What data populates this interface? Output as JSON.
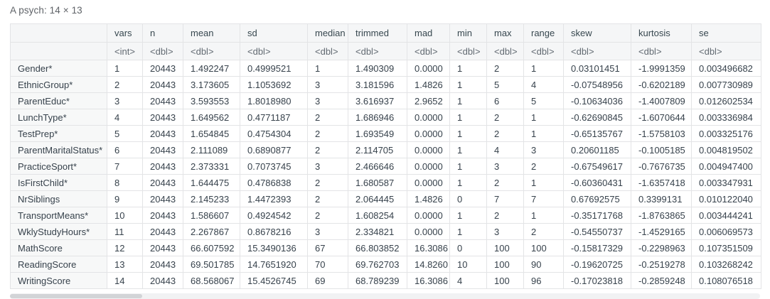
{
  "title": "A psych: 14 × 13",
  "colors": {
    "header_bg": "#f5f6f7",
    "rowname_bg": "#f7f8f8",
    "border": "#e3e4e6",
    "caption_text": "#5f6368",
    "cell_text": "#37424c"
  },
  "table": {
    "columns": [
      "",
      "vars",
      "n",
      "mean",
      "sd",
      "median",
      "trimmed",
      "mad",
      "min",
      "max",
      "range",
      "skew",
      "kurtosis",
      "se"
    ],
    "types": [
      "",
      "<int>",
      "<dbl>",
      "<dbl>",
      "<dbl>",
      "<dbl>",
      "<dbl>",
      "<dbl>",
      "<dbl>",
      "<dbl>",
      "<dbl>",
      "<dbl>",
      "<dbl>",
      "<dbl>"
    ],
    "rows": [
      [
        "Gender*",
        "1",
        "20443",
        "1.492247",
        "0.4999521",
        "1",
        "1.490309",
        "0.0000",
        "1",
        "2",
        "1",
        "0.03101451",
        "-1.9991359",
        "0.003496682"
      ],
      [
        "EthnicGroup*",
        "2",
        "20443",
        "3.173605",
        "1.1053692",
        "3",
        "3.181596",
        "1.4826",
        "1",
        "5",
        "4",
        "-0.07548956",
        "-0.6202189",
        "0.007730989"
      ],
      [
        "ParentEduc*",
        "3",
        "20443",
        "3.593553",
        "1.8018980",
        "3",
        "3.616937",
        "2.9652",
        "1",
        "6",
        "5",
        "-0.10634036",
        "-1.4007809",
        "0.012602534"
      ],
      [
        "LunchType*",
        "4",
        "20443",
        "1.649562",
        "0.4771187",
        "2",
        "1.686946",
        "0.0000",
        "1",
        "2",
        "1",
        "-0.62690845",
        "-1.6070644",
        "0.003336984"
      ],
      [
        "TestPrep*",
        "5",
        "20443",
        "1.654845",
        "0.4754304",
        "2",
        "1.693549",
        "0.0000",
        "1",
        "2",
        "1",
        "-0.65135767",
        "-1.5758103",
        "0.003325176"
      ],
      [
        "ParentMaritalStatus*",
        "6",
        "20443",
        "2.111089",
        "0.6890877",
        "2",
        "2.114705",
        "0.0000",
        "1",
        "4",
        "3",
        "0.20601185",
        "-0.1005185",
        "0.004819502"
      ],
      [
        "PracticeSport*",
        "7",
        "20443",
        "2.373331",
        "0.7073745",
        "3",
        "2.466646",
        "0.0000",
        "1",
        "3",
        "2",
        "-0.67549617",
        "-0.7676735",
        "0.004947400"
      ],
      [
        "IsFirstChild*",
        "8",
        "20443",
        "1.644475",
        "0.4786838",
        "2",
        "1.680587",
        "0.0000",
        "1",
        "2",
        "1",
        "-0.60360431",
        "-1.6357418",
        "0.003347931"
      ],
      [
        "NrSiblings",
        "9",
        "20443",
        "2.145233",
        "1.4472393",
        "2",
        "2.064445",
        "1.4826",
        "0",
        "7",
        "7",
        "0.67692575",
        "0.3399131",
        "0.010122040"
      ],
      [
        "TransportMeans*",
        "10",
        "20443",
        "1.586607",
        "0.4924542",
        "2",
        "1.608254",
        "0.0000",
        "1",
        "2",
        "1",
        "-0.35171768",
        "-1.8763865",
        "0.003444241"
      ],
      [
        "WklyStudyHours*",
        "11",
        "20443",
        "2.267867",
        "0.8678216",
        "3",
        "2.334821",
        "0.0000",
        "1",
        "3",
        "2",
        "-0.54550737",
        "-1.4529165",
        "0.006069573"
      ],
      [
        "MathScore",
        "12",
        "20443",
        "66.607592",
        "15.3490136",
        "67",
        "66.803852",
        "16.3086",
        "0",
        "100",
        "100",
        "-0.15817329",
        "-0.2298963",
        "0.107351509"
      ],
      [
        "ReadingScore",
        "13",
        "20443",
        "69.501785",
        "14.7651920",
        "70",
        "69.762703",
        "14.8260",
        "10",
        "100",
        "90",
        "-0.19620725",
        "-0.2519278",
        "0.103268242"
      ],
      [
        "WritingScore",
        "14",
        "20443",
        "68.568067",
        "15.4526745",
        "69",
        "68.789239",
        "16.3086",
        "4",
        "100",
        "96",
        "-0.17023818",
        "-0.2859248",
        "0.108076518"
      ]
    ]
  }
}
